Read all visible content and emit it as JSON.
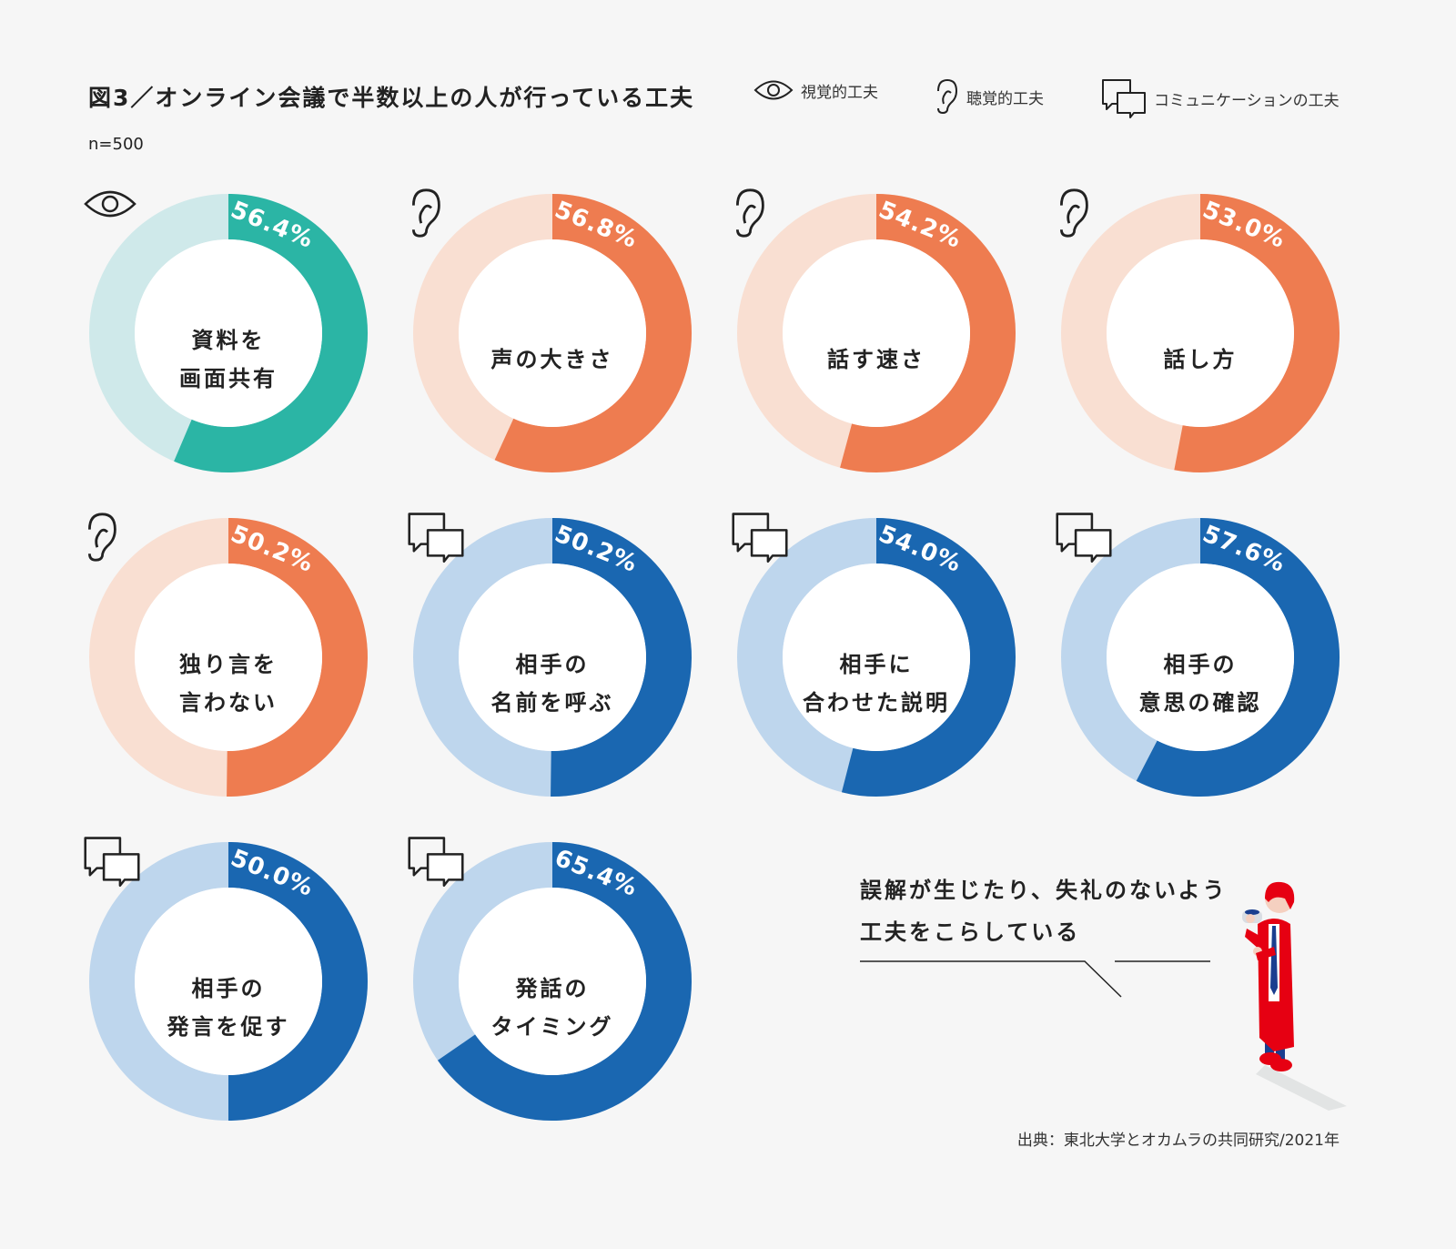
{
  "title": "図3／オンライン会議で半数以上の人が行っている工夫",
  "sample": "n=500",
  "legend": [
    {
      "icon": "eye-icon",
      "label": "視覚的工夫"
    },
    {
      "icon": "ear-icon",
      "label": "聴覚的工夫"
    },
    {
      "icon": "chat-icon",
      "label": "コミュニケーションの工夫"
    }
  ],
  "colors": {
    "visual": {
      "main": "#2bb5a5",
      "light": "#cfe9ea"
    },
    "auditory": {
      "main": "#ee7c50",
      "light": "#f9dfd2"
    },
    "communication": {
      "main": "#1a67b1",
      "light": "#bed6ed"
    },
    "background": "#f6f6f6"
  },
  "chart_data": {
    "type": "donut",
    "unit": "%",
    "items": [
      {
        "label": [
          "資料を",
          "画面共有"
        ],
        "value": 56.4,
        "value_label": "56.4%",
        "category": "visual",
        "icon": "eye-icon"
      },
      {
        "label": [
          "声の大きさ"
        ],
        "value": 56.8,
        "value_label": "56.8%",
        "category": "auditory",
        "icon": "ear-icon"
      },
      {
        "label": [
          "話す速さ"
        ],
        "value": 54.2,
        "value_label": "54.2%",
        "category": "auditory",
        "icon": "ear-icon"
      },
      {
        "label": [
          "話し方"
        ],
        "value": 53.0,
        "value_label": "53.0%",
        "category": "auditory",
        "icon": "ear-icon"
      },
      {
        "label": [
          "独り言を",
          "言わない"
        ],
        "value": 50.2,
        "value_label": "50.2%",
        "category": "auditory",
        "icon": "ear-icon"
      },
      {
        "label": [
          "相手の",
          "名前を呼ぶ"
        ],
        "value": 50.2,
        "value_label": "50.2%",
        "category": "communication",
        "icon": "chat-icon"
      },
      {
        "label": [
          "相手に",
          "合わせた説明"
        ],
        "value": 54.0,
        "value_label": "54.0%",
        "category": "communication",
        "icon": "chat-icon"
      },
      {
        "label": [
          "相手の",
          "意思の確認"
        ],
        "value": 57.6,
        "value_label": "57.6%",
        "category": "communication",
        "icon": "chat-icon"
      },
      {
        "label": [
          "相手の",
          "発言を促す"
        ],
        "value": 50.0,
        "value_label": "50.0%",
        "category": "communication",
        "icon": "chat-icon"
      },
      {
        "label": [
          "発話の",
          "タイミング"
        ],
        "value": 65.4,
        "value_label": "65.4%",
        "category": "communication",
        "icon": "chat-icon"
      }
    ]
  },
  "note": [
    "誤解が生じたり、失礼のないよう",
    "工夫をこらしている"
  ],
  "source": "出典：東北大学とオカムラの共同研究/2021年"
}
